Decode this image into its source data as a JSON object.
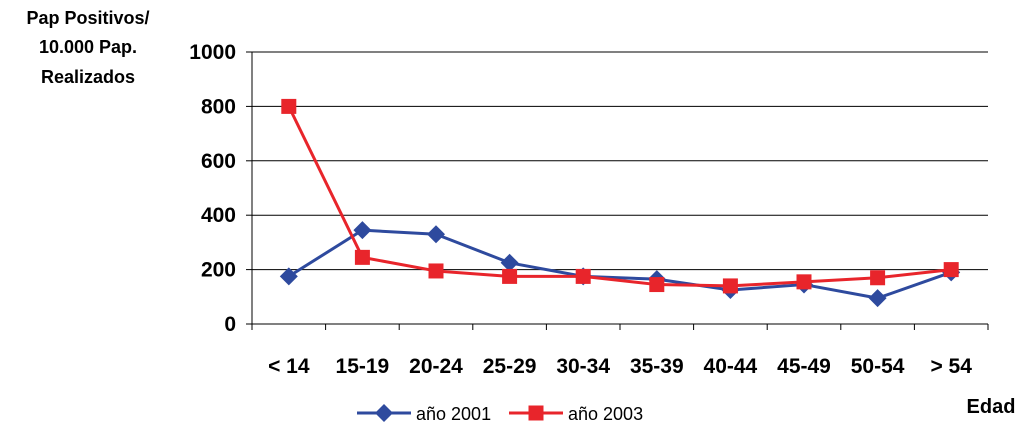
{
  "chart_data": {
    "type": "line",
    "ylabel_lines": [
      "Pap Positivos/",
      "10.000 Pap.",
      "Realizados"
    ],
    "xlabel": "Edad",
    "categories": [
      "< 14",
      "15-19",
      "20-24",
      "25-29",
      "30-34",
      "35-39",
      "40-44",
      "45-49",
      "50-54",
      "> 54"
    ],
    "ylim": [
      0,
      1000
    ],
    "yticks": [
      "0",
      "200",
      "400",
      "600",
      "800",
      "1000"
    ],
    "grid": true,
    "legend_position": "bottom",
    "series": [
      {
        "name": "año 2001",
        "color": "#2e4a9e",
        "marker": "diamond",
        "values": [
          175,
          345,
          330,
          225,
          175,
          165,
          125,
          145,
          95,
          190
        ]
      },
      {
        "name": "año 2003",
        "color": "#e8252b",
        "marker": "square",
        "values": [
          800,
          245,
          195,
          175,
          175,
          145,
          140,
          155,
          170,
          200
        ]
      }
    ]
  }
}
